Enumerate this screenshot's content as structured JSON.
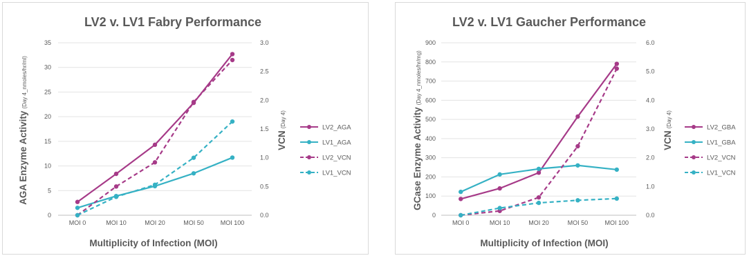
{
  "chart_data": [
    {
      "type": "line",
      "title": "LV2 v. LV1 Fabry Performance",
      "xlabel": "Multiplicity of Infection (MOI)",
      "ylabel": "AGA Enzyme Activity",
      "ylabel_sub": "(Day 4_nmoles/hr/ml)",
      "y2label": "VCN",
      "y2label_sub": "(Day 4)",
      "categories": [
        "MOI 0",
        "MOI 10",
        "MOI 20",
        "MOI 50",
        "MOI 100"
      ],
      "ylim": [
        0,
        35
      ],
      "yticks": [
        "0",
        "5",
        "10",
        "15",
        "20",
        "25",
        "30",
        "35"
      ],
      "y2lim": [
        0,
        3
      ],
      "y2ticks": [
        "0.0",
        "0.5",
        "1.0",
        "1.5",
        "2.0",
        "2.5",
        "3.0"
      ],
      "grid": true,
      "legend_position": "right",
      "series": [
        {
          "name": "LV2_AGA",
          "axis": "left",
          "style": "solid",
          "color": "#a63a88",
          "values": [
            2.7,
            8.4,
            14.3,
            22.8,
            32.7
          ]
        },
        {
          "name": "LV1_AGA",
          "axis": "left",
          "style": "solid",
          "color": "#35b1c4",
          "values": [
            1.5,
            3.9,
            5.9,
            8.5,
            11.7
          ]
        },
        {
          "name": "LV2_VCN",
          "axis": "right",
          "style": "dashed",
          "color": "#a63a88",
          "values": [
            0.0,
            0.5,
            0.92,
            1.97,
            2.7
          ]
        },
        {
          "name": "LV1_VCN",
          "axis": "right",
          "style": "dashed",
          "color": "#35b1c4",
          "values": [
            0.0,
            0.32,
            0.53,
            1.0,
            1.63
          ]
        }
      ]
    },
    {
      "type": "line",
      "title": "LV2 v. LV1 Gaucher Performance",
      "xlabel": "Multiplicity of Infection (MOI)",
      "ylabel": "GCase Enzyme Activity",
      "ylabel_sub": "(Day 4_nmoles/hr/mg)",
      "y2label": "VCN",
      "y2label_sub": "(Day 4)",
      "categories": [
        "MOI 0",
        "MOI 10",
        "MOI 20",
        "MOI 50",
        "MOI 100"
      ],
      "ylim": [
        0,
        900
      ],
      "yticks": [
        "0",
        "100",
        "200",
        "300",
        "400",
        "500",
        "600",
        "700",
        "800",
        "900"
      ],
      "y2lim": [
        0,
        6
      ],
      "y2ticks": [
        "0.0",
        "1.0",
        "2.0",
        "3.0",
        "4.0",
        "5.0",
        "6.0"
      ],
      "grid": true,
      "legend_position": "right",
      "series": [
        {
          "name": "LV2_GBA",
          "axis": "left",
          "style": "solid",
          "color": "#a63a88",
          "values": [
            85,
            140,
            222,
            515,
            790
          ]
        },
        {
          "name": "LV1_GBA",
          "axis": "left",
          "style": "solid",
          "color": "#35b1c4",
          "values": [
            122,
            213,
            242,
            260,
            238
          ]
        },
        {
          "name": "LV2_VCN",
          "axis": "right",
          "style": "dashed",
          "color": "#a63a88",
          "values": [
            0.0,
            0.15,
            0.62,
            2.4,
            5.1
          ]
        },
        {
          "name": "LV1_VCN",
          "axis": "right",
          "style": "dashed",
          "color": "#35b1c4",
          "values": [
            0.0,
            0.25,
            0.43,
            0.52,
            0.58
          ]
        }
      ]
    }
  ]
}
